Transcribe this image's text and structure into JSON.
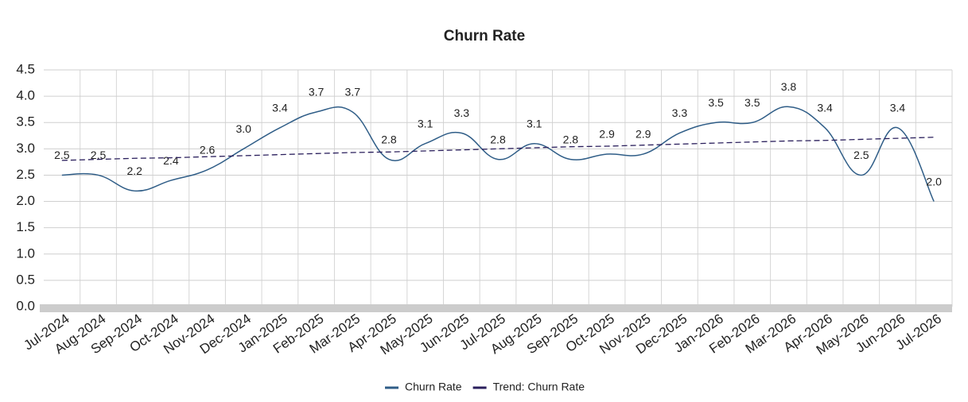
{
  "chart_data": {
    "type": "line",
    "title": "Churn Rate",
    "categories": [
      "Jul-2024",
      "Aug-2024",
      "Sep-2024",
      "Oct-2024",
      "Nov-2024",
      "Dec-2024",
      "Jan-2025",
      "Feb-2025",
      "Mar-2025",
      "Apr-2025",
      "May-2025",
      "Jun-2025",
      "Jul-2025",
      "Aug-2025",
      "Sep-2025",
      "Oct-2025",
      "Nov-2025",
      "Dec-2025",
      "Jan-2026",
      "Feb-2026",
      "Mar-2026",
      "Apr-2026",
      "May-2026",
      "Jun-2026",
      "Jul-2026"
    ],
    "series": [
      {
        "name": "Churn Rate",
        "color": "#2f5d87",
        "smooth": true,
        "values": [
          2.5,
          2.5,
          2.2,
          2.4,
          2.6,
          3.0,
          3.4,
          3.7,
          3.7,
          2.8,
          3.1,
          3.3,
          2.8,
          3.1,
          2.8,
          2.9,
          2.9,
          3.3,
          3.5,
          3.5,
          3.8,
          3.4,
          2.5,
          3.4,
          2.0
        ],
        "value_labels": [
          "2.5",
          "2.5",
          "2.2",
          "2.4",
          "2.6",
          "3.0",
          "3.4",
          "3.7",
          "3.7",
          "2.8",
          "3.1",
          "3.3",
          "2.8",
          "3.1",
          "2.8",
          "2.9",
          "2.9",
          "3.3",
          "3.5",
          "3.5",
          "3.8",
          "3.4",
          "2.5",
          "3.4",
          "2.0"
        ]
      },
      {
        "name": "Trend: Churn Rate",
        "color": "#2a1f5c",
        "dashed": true,
        "values": [
          2.78,
          2.8,
          2.82,
          2.83,
          2.85,
          2.87,
          2.89,
          2.91,
          2.93,
          2.94,
          2.96,
          2.98,
          3.0,
          3.02,
          3.04,
          3.05,
          3.07,
          3.09,
          3.11,
          3.13,
          3.15,
          3.16,
          3.18,
          3.2,
          3.22
        ]
      }
    ],
    "ylim": [
      0,
      4.5
    ],
    "yticks": [
      {
        "value": 0,
        "label": "0.0"
      },
      0.5,
      {
        "value": 1,
        "label": "1.0"
      },
      1.5,
      {
        "value": 2,
        "label": "2.0"
      },
      2.5,
      {
        "value": 3,
        "label": "3.0"
      },
      3.5,
      {
        "value": 4,
        "label": "4.0"
      },
      4.5
    ],
    "grid": true,
    "legend": "bottom"
  }
}
